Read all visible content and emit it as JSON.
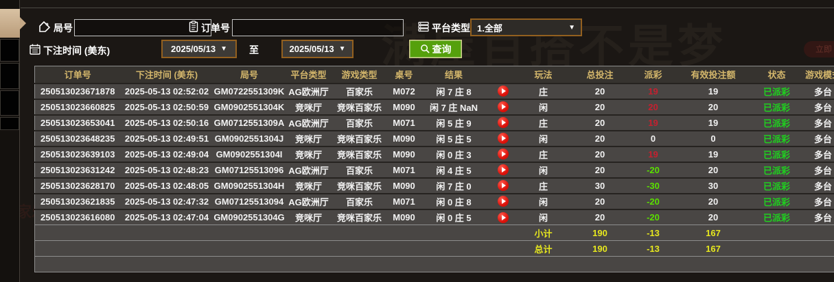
{
  "watermark": {
    "slogan": "满屋百搭不是梦",
    "fragment": "百家乐",
    "badge": "立即"
  },
  "filters": {
    "round_label": "局号",
    "round_value": "",
    "order_label": "订单号",
    "order_value": "",
    "platform_label": "平台类型",
    "platform_value": "1.全部",
    "bet_time_label": "下注时间 (美东)",
    "date_from": "2025/05/13",
    "date_to": "2025/05/13",
    "to_label": "至",
    "query_label": "查询",
    "dropdown_arrow": "▼"
  },
  "table": {
    "columns": [
      {
        "key": "order_id",
        "label": "订单号"
      },
      {
        "key": "bet_time",
        "label": "下注时间 (美东)"
      },
      {
        "key": "round_id",
        "label": "局号"
      },
      {
        "key": "platform",
        "label": "平台类型"
      },
      {
        "key": "game_type",
        "label": "游戏类型"
      },
      {
        "key": "table_no",
        "label": "桌号"
      },
      {
        "key": "result",
        "label": "结果"
      },
      {
        "key": "play",
        "label": ""
      },
      {
        "key": "play_type",
        "label": "玩法"
      },
      {
        "key": "total_bet",
        "label": "总投注"
      },
      {
        "key": "payout",
        "label": "派彩"
      },
      {
        "key": "valid_bet",
        "label": "有效投注额"
      },
      {
        "key": "status",
        "label": "状态"
      },
      {
        "key": "mode",
        "label": "游戏模式"
      }
    ],
    "rows": [
      {
        "order_id": "250513023671878",
        "bet_time": "2025-05-13 02:52:02",
        "round_id": "GM0722551309K",
        "platform": "AG欧洲厅",
        "game_type": "百家乐",
        "table_no": "M072",
        "result": "闲 7 庄 8",
        "play_type": "庄",
        "total_bet": "20",
        "payout": "19",
        "payout_class": "pos",
        "valid_bet": "19",
        "status": "已派彩",
        "mode": "多台"
      },
      {
        "order_id": "250513023660825",
        "bet_time": "2025-05-13 02:50:59",
        "round_id": "GM0902551304K",
        "platform": "竞咪厅",
        "game_type": "竞咪百家乐",
        "table_no": "M090",
        "result": "闲 7 庄 NaN",
        "play_type": "闲",
        "total_bet": "20",
        "payout": "20",
        "payout_class": "pos",
        "valid_bet": "20",
        "status": "已派彩",
        "mode": "多台"
      },
      {
        "order_id": "250513023653041",
        "bet_time": "2025-05-13 02:50:16",
        "round_id": "GM0712551309A",
        "platform": "AG欧洲厅",
        "game_type": "百家乐",
        "table_no": "M071",
        "result": "闲 5 庄 9",
        "play_type": "庄",
        "total_bet": "20",
        "payout": "19",
        "payout_class": "pos",
        "valid_bet": "19",
        "status": "已派彩",
        "mode": "多台"
      },
      {
        "order_id": "250513023648235",
        "bet_time": "2025-05-13 02:49:51",
        "round_id": "GM0902551304J",
        "platform": "竞咪厅",
        "game_type": "竞咪百家乐",
        "table_no": "M090",
        "result": "闲 5 庄 5",
        "play_type": "闲",
        "total_bet": "20",
        "payout": "0",
        "payout_class": "zero",
        "valid_bet": "0",
        "status": "已派彩",
        "mode": "多台"
      },
      {
        "order_id": "250513023639103",
        "bet_time": "2025-05-13 02:49:04",
        "round_id": "GM0902551304I",
        "platform": "竞咪厅",
        "game_type": "竞咪百家乐",
        "table_no": "M090",
        "result": "闲 0 庄 3",
        "play_type": "庄",
        "total_bet": "20",
        "payout": "19",
        "payout_class": "pos",
        "valid_bet": "19",
        "status": "已派彩",
        "mode": "多台"
      },
      {
        "order_id": "250513023631242",
        "bet_time": "2025-05-13 02:48:23",
        "round_id": "GM07125513096",
        "platform": "AG欧洲厅",
        "game_type": "百家乐",
        "table_no": "M071",
        "result": "闲 4 庄 5",
        "play_type": "闲",
        "total_bet": "20",
        "payout": "-20",
        "payout_class": "neg",
        "valid_bet": "20",
        "status": "已派彩",
        "mode": "多台"
      },
      {
        "order_id": "250513023628170",
        "bet_time": "2025-05-13 02:48:05",
        "round_id": "GM0902551304H",
        "platform": "竞咪厅",
        "game_type": "竞咪百家乐",
        "table_no": "M090",
        "result": "闲 7 庄 0",
        "play_type": "庄",
        "total_bet": "30",
        "payout": "-30",
        "payout_class": "neg",
        "valid_bet": "30",
        "status": "已派彩",
        "mode": "多台"
      },
      {
        "order_id": "250513023621835",
        "bet_time": "2025-05-13 02:47:32",
        "round_id": "GM07125513094",
        "platform": "AG欧洲厅",
        "game_type": "百家乐",
        "table_no": "M071",
        "result": "闲 0 庄 8",
        "play_type": "闲",
        "total_bet": "20",
        "payout": "-20",
        "payout_class": "neg",
        "valid_bet": "20",
        "status": "已派彩",
        "mode": "多台"
      },
      {
        "order_id": "250513023616080",
        "bet_time": "2025-05-13 02:47:04",
        "round_id": "GM0902551304G",
        "platform": "竞咪厅",
        "game_type": "竞咪百家乐",
        "table_no": "M090",
        "result": "闲 0 庄 5",
        "play_type": "闲",
        "total_bet": "20",
        "payout": "-20",
        "payout_class": "neg",
        "valid_bet": "20",
        "status": "已派彩",
        "mode": "多台"
      }
    ],
    "summary_rows": [
      {
        "label": "小计",
        "total_bet": "190",
        "payout": "-13",
        "valid_bet": "167"
      },
      {
        "label": "总计",
        "total_bet": "190",
        "payout": "-13",
        "valid_bet": "167"
      }
    ]
  }
}
